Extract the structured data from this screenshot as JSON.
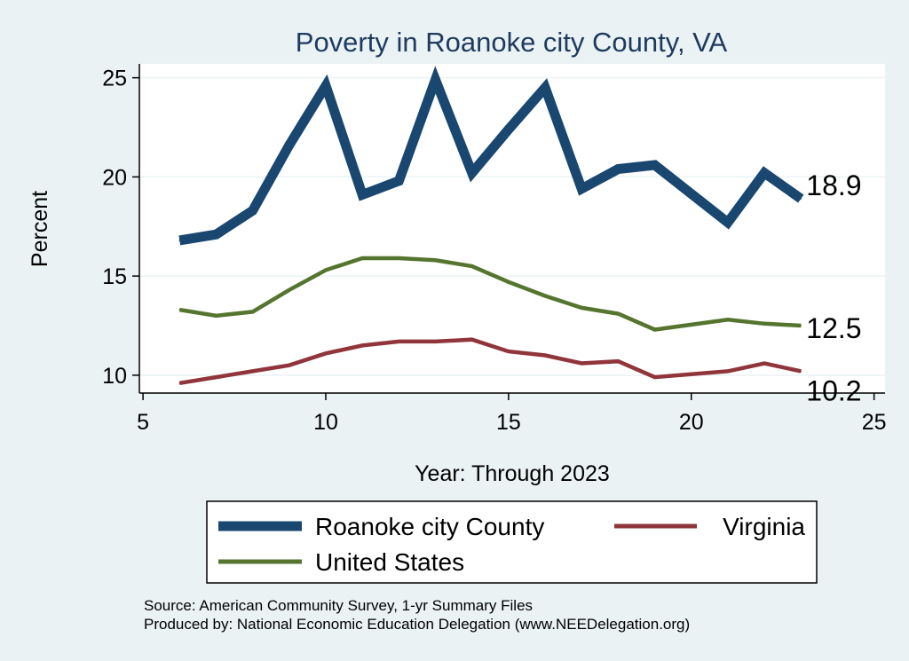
{
  "chart_data": {
    "type": "line",
    "title": "Poverty in Roanoke city County, VA",
    "xlabel": "Year: Through 2023",
    "ylabel": "Percent",
    "xlim": [
      4.9,
      25.3
    ],
    "ylim": [
      9.1,
      25.7
    ],
    "xticks": [
      5,
      10,
      15,
      20,
      25
    ],
    "yticks": [
      10,
      15,
      20,
      25
    ],
    "grid": "horizontal",
    "legend_position": "bottom",
    "series": [
      {
        "name": "Roanoke city County",
        "color": "#1a476f",
        "x": [
          6,
          7,
          8,
          9,
          10,
          11,
          12,
          13,
          14,
          15,
          16,
          17,
          18,
          19,
          21,
          22,
          23
        ],
        "values": [
          16.8,
          17.1,
          18.3,
          21.6,
          24.6,
          19.1,
          19.8,
          24.9,
          20.2,
          22.4,
          24.5,
          19.4,
          20.4,
          20.6,
          17.7,
          20.2,
          18.9
        ],
        "end_label": "18.9"
      },
      {
        "name": "United States",
        "color": "#55752f",
        "x": [
          6,
          7,
          8,
          9,
          10,
          11,
          12,
          13,
          14,
          15,
          16,
          17,
          18,
          19,
          21,
          22,
          23
        ],
        "values": [
          13.3,
          13.0,
          13.2,
          14.3,
          15.3,
          15.9,
          15.9,
          15.8,
          15.5,
          14.7,
          14.0,
          13.4,
          13.1,
          12.3,
          12.8,
          12.6,
          12.5
        ],
        "end_label": "12.5"
      },
      {
        "name": "Virginia",
        "color": "#90353b",
        "x": [
          6,
          7,
          8,
          9,
          10,
          11,
          12,
          13,
          14,
          15,
          16,
          17,
          18,
          19,
          21,
          22,
          23
        ],
        "values": [
          9.6,
          9.9,
          10.2,
          10.5,
          11.1,
          11.5,
          11.7,
          11.7,
          11.8,
          11.2,
          11.0,
          10.6,
          10.7,
          9.9,
          10.2,
          10.6,
          10.2
        ],
        "end_label": "10.2"
      }
    ],
    "legend": [
      "Roanoke city County",
      "Virginia",
      "United States"
    ]
  },
  "notes": {
    "source": "Source: American Community Survey, 1-yr Summary Files",
    "produced_by": "Produced by: National Economic Education Delegation (www.NEEDelegation.org)"
  }
}
